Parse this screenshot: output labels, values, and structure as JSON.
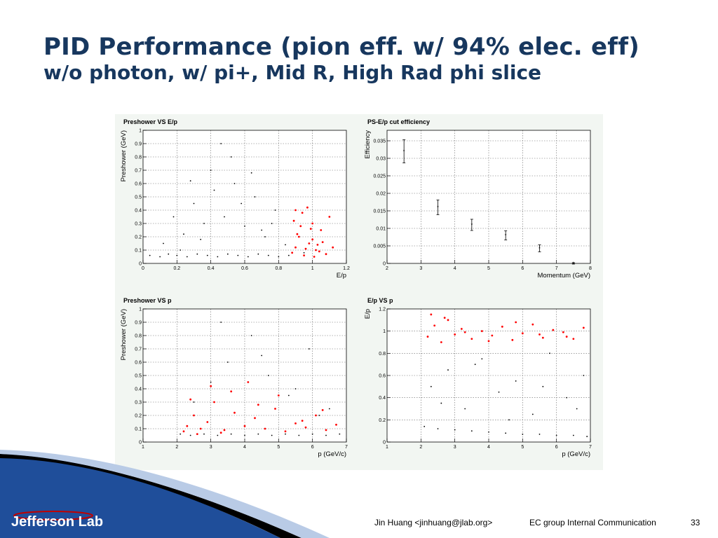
{
  "slide": {
    "title_line1": "PID Performance (pion eff. w/ 94% elec. eff)",
    "title_line2": "w/o photon, w/ pi+, Mid R, High Rad phi slice",
    "footer_author": "Jin Huang <jinhuang@jlab.org>",
    "footer_center": "EC group Internal Communication",
    "page_number": "33",
    "logo_text": "Jefferson Lab"
  },
  "colors": {
    "title": "#17375e",
    "selected_points": "#ff0000",
    "points": "#000000",
    "panel_bg": "#f2f6f2",
    "swoosh_blue": "#1f4e9a"
  },
  "chart_data": [
    {
      "type": "scatter",
      "title": "Preshower VS E/p",
      "xlabel": "E/p",
      "ylabel": "Preshower (GeV)",
      "xlim": [
        0,
        1.2
      ],
      "ylim": [
        0,
        1
      ],
      "xticks": [
        "0",
        "0.2",
        "0.4",
        "0.6",
        "0.8",
        "1",
        "1.2"
      ],
      "yticks": [
        "0",
        "0.1",
        "0.2",
        "0.3",
        "0.4",
        "0.5",
        "0.6",
        "0.7",
        "0.8",
        "0.9",
        "1"
      ],
      "grid": true,
      "series": [
        {
          "color": "#000000",
          "x": [
            0.04,
            0.1,
            0.15,
            0.2,
            0.26,
            0.32,
            0.38,
            0.44,
            0.5,
            0.56,
            0.62,
            0.68,
            0.74,
            0.8,
            0.86,
            0.12,
            0.24,
            0.36,
            0.48,
            0.6,
            0.72,
            0.84,
            0.3,
            0.42,
            0.54,
            0.66,
            0.78,
            0.9,
            0.95,
            0.18,
            0.28,
            0.4,
            0.52,
            0.64,
            0.76,
            0.46,
            0.58,
            0.7,
            0.34,
            0.22
          ],
          "y": [
            0.06,
            0.05,
            0.07,
            0.06,
            0.05,
            0.07,
            0.06,
            0.05,
            0.07,
            0.06,
            0.05,
            0.07,
            0.06,
            0.05,
            0.06,
            0.15,
            0.22,
            0.3,
            0.35,
            0.28,
            0.2,
            0.14,
            0.45,
            0.55,
            0.6,
            0.5,
            0.4,
            0.12,
            0.08,
            0.35,
            0.62,
            0.7,
            0.8,
            0.68,
            0.3,
            0.9,
            0.45,
            0.25,
            0.18,
            0.1
          ]
        },
        {
          "color": "#ff0000",
          "x": [
            0.88,
            0.9,
            0.92,
            0.95,
            0.98,
            1.0,
            1.02,
            1.05,
            1.08,
            1.1,
            0.9,
            0.93,
            0.97,
            1.0,
            1.04,
            1.12,
            0.91,
            0.96,
            1.01,
            1.06,
            0.89,
            0.94,
            0.99,
            1.03
          ],
          "y": [
            0.08,
            0.12,
            0.2,
            0.06,
            0.15,
            0.3,
            0.1,
            0.25,
            0.07,
            0.35,
            0.4,
            0.28,
            0.42,
            0.18,
            0.09,
            0.12,
            0.22,
            0.11,
            0.05,
            0.16,
            0.32,
            0.38,
            0.26,
            0.14
          ]
        }
      ]
    },
    {
      "type": "scatter",
      "title": "PS-E/p cut efficiency",
      "xlabel": "Momentum (GeV)",
      "ylabel": "Efficiency",
      "xlim": [
        2,
        8
      ],
      "ylim": [
        0,
        0.038
      ],
      "xticks": [
        "2",
        "3",
        "4",
        "5",
        "6",
        "7",
        "8"
      ],
      "yticks": [
        "0",
        "0.005",
        "0.01",
        "0.015",
        "0.02",
        "0.025",
        "0.03",
        "0.035"
      ],
      "grid": true,
      "series": [
        {
          "color": "#000000",
          "x": [
            2.5,
            3.5,
            4.5,
            5.5,
            6.5,
            7.5
          ],
          "y": [
            0.032,
            0.016,
            0.011,
            0.008,
            0.0043,
            0.0
          ],
          "yerr": [
            0.0033,
            0.0021,
            0.0016,
            0.0013,
            0.001,
            0.0002
          ]
        }
      ]
    },
    {
      "type": "scatter",
      "title": "Preshower VS p",
      "xlabel": "p (GeV/c)",
      "ylabel": "Preshower (GeV)",
      "xlim": [
        1,
        7
      ],
      "ylim": [
        0,
        1
      ],
      "xticks": [
        "1",
        "2",
        "3",
        "4",
        "5",
        "6",
        "7"
      ],
      "yticks": [
        "0",
        "0.1",
        "0.2",
        "0.3",
        "0.4",
        "0.5",
        "0.6",
        "0.7",
        "0.8",
        "0.9",
        "1"
      ],
      "grid": true,
      "series": [
        {
          "color": "#000000",
          "x": [
            2.1,
            2.4,
            2.8,
            3.2,
            3.6,
            4.0,
            4.4,
            4.8,
            5.2,
            5.6,
            6.0,
            6.4,
            6.8,
            2.5,
            3.0,
            3.5,
            4.2,
            4.7,
            5.3,
            5.9,
            6.5,
            3.3,
            4.5,
            5.5,
            6.2
          ],
          "y": [
            0.06,
            0.05,
            0.06,
            0.05,
            0.06,
            0.05,
            0.06,
            0.05,
            0.06,
            0.05,
            0.06,
            0.05,
            0.06,
            0.3,
            0.45,
            0.6,
            0.8,
            0.5,
            0.35,
            0.7,
            0.25,
            0.9,
            0.65,
            0.4,
            0.2
          ]
        },
        {
          "color": "#ff0000",
          "x": [
            2.2,
            2.3,
            2.5,
            2.7,
            2.9,
            3.1,
            3.4,
            3.7,
            4.0,
            4.3,
            4.6,
            4.9,
            5.2,
            5.5,
            5.8,
            6.1,
            6.4,
            6.7,
            2.4,
            3.0,
            3.6,
            4.4,
            5.0,
            5.7,
            6.3,
            2.6,
            3.3,
            4.1
          ],
          "y": [
            0.08,
            0.12,
            0.2,
            0.1,
            0.15,
            0.3,
            0.09,
            0.22,
            0.12,
            0.18,
            0.1,
            0.25,
            0.08,
            0.14,
            0.11,
            0.2,
            0.09,
            0.13,
            0.32,
            0.42,
            0.38,
            0.28,
            0.35,
            0.16,
            0.24,
            0.06,
            0.07,
            0.45
          ]
        }
      ]
    },
    {
      "type": "scatter",
      "title": "E/p VS p",
      "xlabel": "p (GeV/c)",
      "ylabel": "E/p",
      "xlim": [
        1,
        7
      ],
      "ylim": [
        0,
        1.2
      ],
      "xticks": [
        "1",
        "2",
        "3",
        "4",
        "5",
        "6",
        "7"
      ],
      "yticks": [
        "0",
        "0.2",
        "0.4",
        "0.6",
        "0.8",
        "1",
        "1.2"
      ],
      "grid": true,
      "series": [
        {
          "color": "#000000",
          "x": [
            2.1,
            2.5,
            3.0,
            3.5,
            4.0,
            4.5,
            5.0,
            5.5,
            6.0,
            6.5,
            6.9,
            2.3,
            2.8,
            3.3,
            3.8,
            4.3,
            4.8,
            5.3,
            5.8,
            6.3,
            6.8,
            2.6,
            3.6,
            4.6,
            5.6,
            6.6
          ],
          "y": [
            0.14,
            0.12,
            0.11,
            0.1,
            0.09,
            0.08,
            0.07,
            0.07,
            0.06,
            0.06,
            0.05,
            0.5,
            0.65,
            0.3,
            0.75,
            0.45,
            0.55,
            0.25,
            0.8,
            0.4,
            0.6,
            0.35,
            0.7,
            0.2,
            0.5,
            0.3
          ]
        },
        {
          "color": "#ff0000",
          "x": [
            2.2,
            2.4,
            2.6,
            2.8,
            3.0,
            3.2,
            3.5,
            3.8,
            4.1,
            4.4,
            4.7,
            5.0,
            5.3,
            5.6,
            5.9,
            6.2,
            6.5,
            6.8,
            2.3,
            2.7,
            3.3,
            4.0,
            4.8,
            5.5,
            6.3
          ],
          "y": [
            0.95,
            1.05,
            0.9,
            1.1,
            0.97,
            1.02,
            0.93,
            1.0,
            0.96,
            1.04,
            0.92,
            0.98,
            1.06,
            0.94,
            1.01,
            0.99,
            0.93,
            1.03,
            1.15,
            1.12,
            0.99,
            0.91,
            1.08,
            0.97,
            0.95
          ]
        }
      ]
    }
  ]
}
